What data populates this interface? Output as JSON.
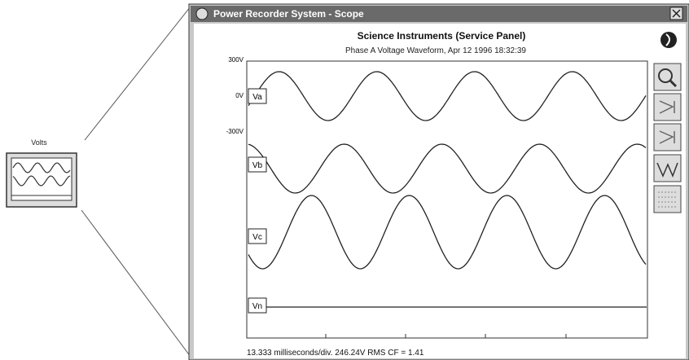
{
  "icon": {
    "label": "Volts"
  },
  "window": {
    "title": "Power Recorder System - Scope",
    "heading": "Science Instruments (Service Panel)",
    "subheading": "Phase A Voltage Waveform, Apr 12 1996 18:32:39",
    "axis_labels": [
      "300V",
      "0V",
      "-300V"
    ],
    "channels": [
      "Va",
      "Vb",
      "Vc",
      "Vn"
    ],
    "footer": "13.333 milliseconds/div.  246.24V RMS CF = 1.41"
  }
}
